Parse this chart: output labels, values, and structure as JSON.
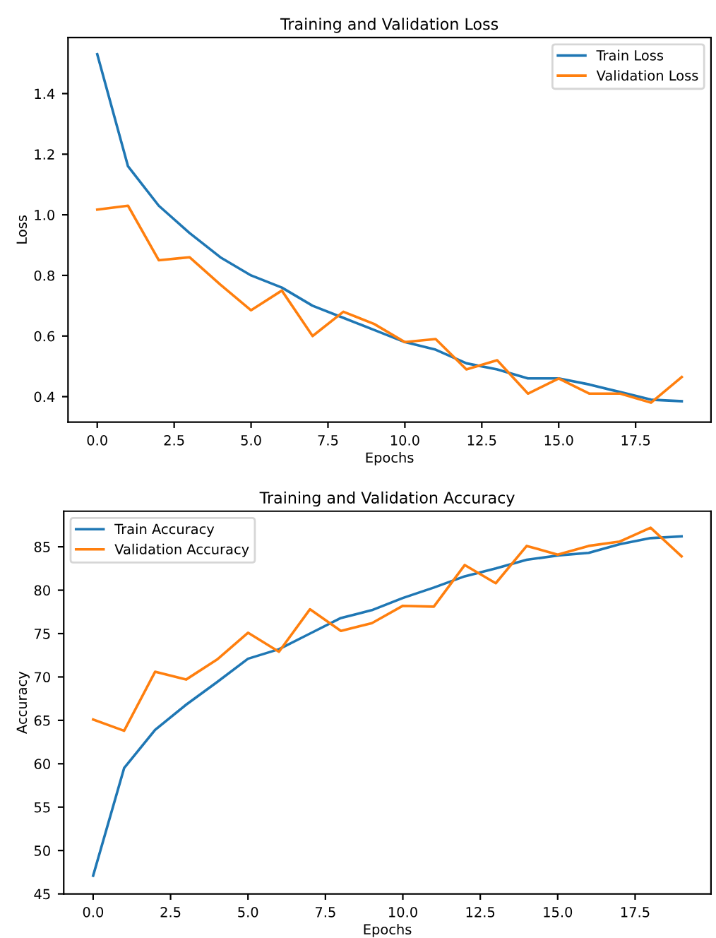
{
  "chart_data": [
    {
      "type": "line",
      "title": "Training and Validation Loss",
      "xlabel": "Epochs",
      "ylabel": "Loss",
      "x": [
        0,
        1,
        2,
        3,
        4,
        5,
        6,
        7,
        8,
        9,
        10,
        11,
        12,
        13,
        14,
        15,
        16,
        17,
        18,
        19
      ],
      "series": [
        {
          "name": "Train Loss",
          "color": "#1f77b4",
          "values": [
            1.53,
            1.16,
            1.03,
            0.94,
            0.86,
            0.8,
            0.76,
            0.7,
            0.66,
            0.62,
            0.58,
            0.555,
            0.51,
            0.49,
            0.46,
            0.46,
            0.44,
            0.415,
            0.39,
            0.385
          ]
        },
        {
          "name": "Validation Loss",
          "color": "#ff7f0e",
          "values": [
            1.017,
            1.03,
            0.85,
            0.86,
            0.77,
            0.685,
            0.75,
            0.6,
            0.68,
            0.64,
            0.58,
            0.59,
            0.49,
            0.52,
            0.41,
            0.46,
            0.41,
            0.41,
            0.38,
            0.465
          ]
        }
      ],
      "xlim": [
        -0.95,
        19.95
      ],
      "ylim": [
        0.316,
        1.585
      ],
      "xticks": [
        {
          "value": 0,
          "label": "0.0"
        },
        2.5,
        {
          "value": 5,
          "label": "5.0"
        },
        7.5,
        {
          "value": 10,
          "label": "10.0"
        },
        12.5,
        {
          "value": 15,
          "label": "15.0"
        },
        17.5
      ],
      "yticks": [
        0.4,
        0.6,
        0.8,
        {
          "value": 1,
          "label": "1.0"
        },
        1.2,
        1.4
      ],
      "legend": "top right",
      "grid": false,
      "marker": "none",
      "line_style": "solid"
    },
    {
      "type": "line",
      "title": "Training and Validation Accuracy",
      "xlabel": "Epochs",
      "ylabel": "Accuracy",
      "x": [
        0,
        1,
        2,
        3,
        4,
        5,
        6,
        7,
        8,
        9,
        10,
        11,
        12,
        13,
        14,
        15,
        16,
        17,
        18,
        19
      ],
      "series": [
        {
          "name": "Train Accuracy",
          "color": "#1f77b4",
          "values": [
            47.1,
            59.5,
            63.9,
            66.8,
            69.4,
            72.1,
            73.2,
            75.0,
            76.8,
            77.7,
            79.1,
            80.3,
            81.6,
            82.5,
            83.5,
            84.0,
            84.3,
            85.3,
            86.0,
            86.2
          ]
        },
        {
          "name": "Validation Accuracy",
          "color": "#ff7f0e",
          "values": [
            65.1,
            63.8,
            70.6,
            69.7,
            72.0,
            75.1,
            72.9,
            77.8,
            75.3,
            76.2,
            78.2,
            78.1,
            82.9,
            80.8,
            85.1,
            84.1,
            85.1,
            85.6,
            87.2,
            83.9
          ]
        }
      ],
      "xlim": [
        -0.95,
        19.95
      ],
      "ylim": [
        45.0,
        89.1
      ],
      "xticks": [
        {
          "value": 0,
          "label": "0.0"
        },
        2.5,
        {
          "value": 5,
          "label": "5.0"
        },
        7.5,
        {
          "value": 10,
          "label": "10.0"
        },
        12.5,
        {
          "value": 15,
          "label": "15.0"
        },
        17.5
      ],
      "yticks": [
        45,
        50,
        55,
        60,
        65,
        70,
        75,
        80,
        85
      ],
      "legend": "top left",
      "grid": false,
      "marker": "none",
      "line_style": "solid"
    }
  ]
}
